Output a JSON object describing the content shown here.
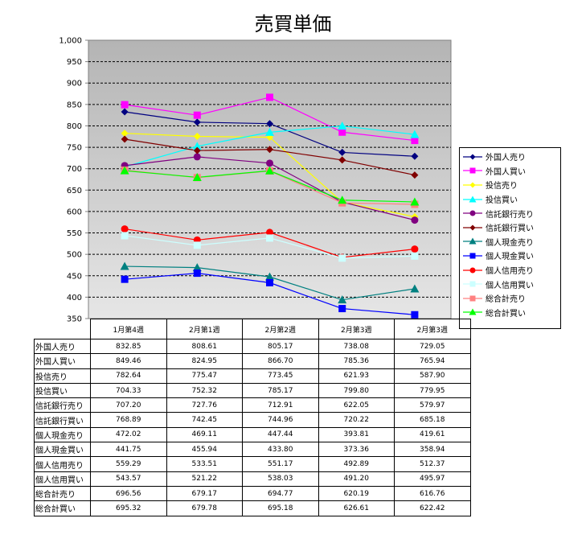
{
  "chart_data": {
    "type": "line",
    "title": "売買単価",
    "categories": [
      "1月第4週",
      "2月第1週",
      "2月第2週",
      "2月第3週",
      "2月第3週"
    ],
    "ylim": [
      350,
      1000
    ],
    "yticks": [
      "350",
      "400",
      "450",
      "500",
      "550",
      "600",
      "650",
      "700",
      "750",
      "800",
      "850",
      "900",
      "950",
      "1,000"
    ],
    "grid": true,
    "legend_position": "right",
    "series": [
      {
        "name": "外国人売り",
        "color": "#000080",
        "marker": "diamond",
        "values": [
          832.85,
          808.61,
          805.17,
          738.08,
          729.05
        ],
        "labels": [
          "832.85",
          "808.61",
          "805.17",
          "738.08",
          "729.05"
        ]
      },
      {
        "name": "外国人買い",
        "color": "#FF00FF",
        "marker": "square",
        "values": [
          849.46,
          824.95,
          866.7,
          785.36,
          765.94
        ],
        "labels": [
          "849.46",
          "824.95",
          "866.70",
          "785.36",
          "765.94"
        ]
      },
      {
        "name": "投信売り",
        "color": "#FFFF00",
        "marker": "diamond",
        "values": [
          782.64,
          775.47,
          773.45,
          621.93,
          587.9
        ],
        "labels": [
          "782.64",
          "775.47",
          "773.45",
          "621.93",
          "587.90"
        ]
      },
      {
        "name": "投信買い",
        "color": "#00FFFF",
        "marker": "triangle",
        "values": [
          704.33,
          752.32,
          785.17,
          799.8,
          779.95
        ],
        "labels": [
          "704.33",
          "752.32",
          "785.17",
          "799.80",
          "779.95"
        ]
      },
      {
        "name": "信託銀行売り",
        "color": "#800080",
        "marker": "circle",
        "values": [
          707.2,
          727.76,
          712.91,
          622.05,
          579.97
        ],
        "labels": [
          "707.20",
          "727.76",
          "712.91",
          "622.05",
          "579.97"
        ]
      },
      {
        "name": "信託銀行買い",
        "color": "#800000",
        "marker": "diamond",
        "values": [
          768.89,
          742.45,
          744.96,
          720.22,
          685.18
        ],
        "labels": [
          "768.89",
          "742.45",
          "744.96",
          "720.22",
          "685.18"
        ]
      },
      {
        "name": "個人現金売り",
        "color": "#008080",
        "marker": "triangle",
        "values": [
          472.02,
          469.11,
          447.44,
          393.81,
          419.61
        ],
        "labels": [
          "472.02",
          "469.11",
          "447.44",
          "393.81",
          "419.61"
        ]
      },
      {
        "name": "個人現金買い",
        "color": "#0000FF",
        "marker": "square",
        "values": [
          441.75,
          455.94,
          433.8,
          373.36,
          358.94
        ],
        "labels": [
          "441.75",
          "455.94",
          "433.80",
          "373.36",
          "358.94"
        ]
      },
      {
        "name": "個人信用売り",
        "color": "#FF0000",
        "marker": "circle",
        "values": [
          559.29,
          533.51,
          551.17,
          492.89,
          512.37
        ],
        "labels": [
          "559.29",
          "533.51",
          "551.17",
          "492.89",
          "512.37"
        ]
      },
      {
        "name": "個人信用買い",
        "color": "#CCFFFF",
        "marker": "square",
        "values": [
          543.57,
          521.22,
          538.03,
          491.2,
          495.97
        ],
        "labels": [
          "543.57",
          "521.22",
          "538.03",
          "491.20",
          "495.97"
        ]
      },
      {
        "name": "総合計売り",
        "color": "#FF8080",
        "marker": "square",
        "values": [
          696.56,
          679.17,
          694.77,
          620.19,
          616.76
        ],
        "labels": [
          "696.56",
          "679.17",
          "694.77",
          "620.19",
          "616.76"
        ]
      },
      {
        "name": "総合計買い",
        "color": "#00FF00",
        "marker": "triangle",
        "values": [
          695.32,
          679.78,
          695.18,
          626.61,
          622.42
        ],
        "labels": [
          "695.32",
          "679.78",
          "695.18",
          "626.61",
          "622.42"
        ]
      }
    ]
  }
}
